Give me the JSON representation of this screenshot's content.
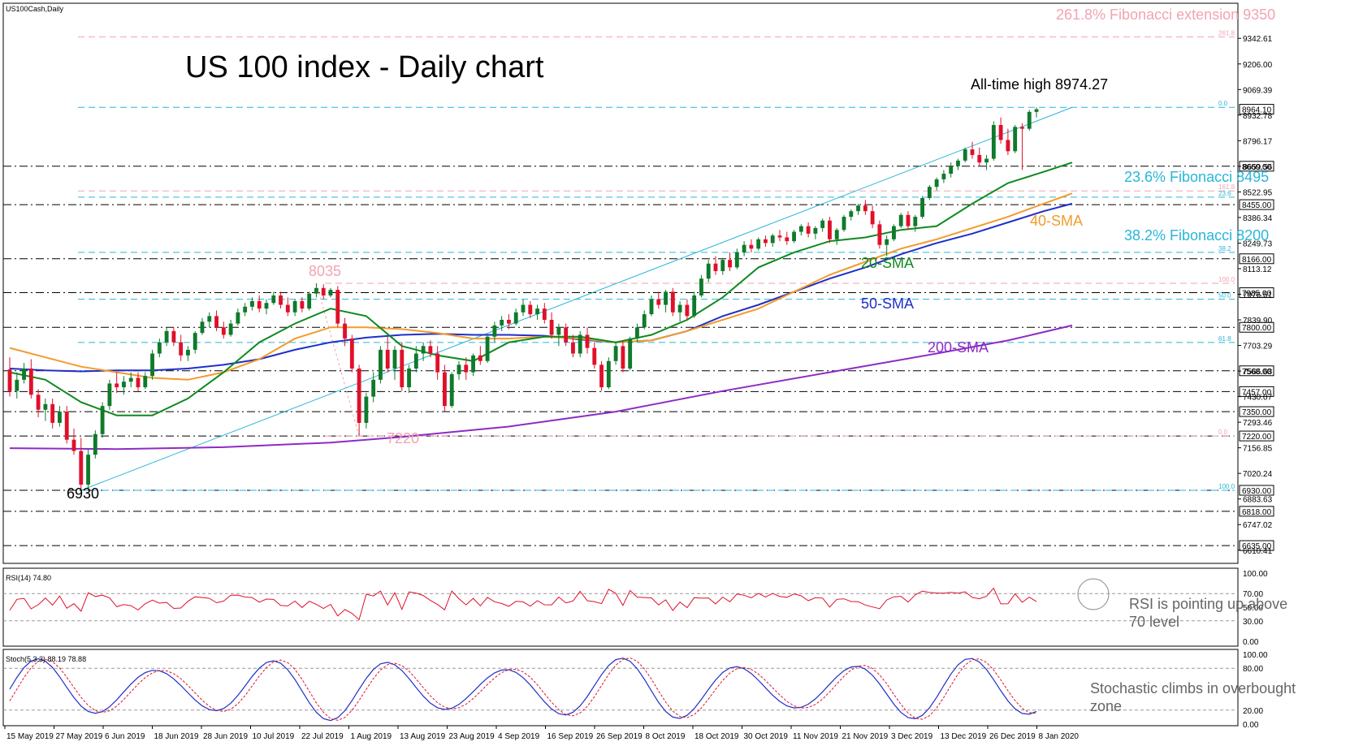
{
  "header": {
    "symbol": "US100Cash,Daily",
    "title": "US 100 index - Daily chart"
  },
  "annotations": {
    "fib_ext": "261.8% Fibonacci extension 9350",
    "ath": "All-time high 8974.27",
    "fib236": "23.6% Fibonacci 8495",
    "fib382": "38.2% Fibonacci 8200",
    "sma20": "20-SMA",
    "sma40": "40-SMA",
    "sma50": "50-SMA",
    "sma200": "200-SMA",
    "low_6930": "6930",
    "low_7220": "7220",
    "high_8035": "8035",
    "rsi_note_1": "RSI is pointing up above",
    "rsi_note_2": "70 level",
    "stoch_note_1": "Stochastic climbs in overbought",
    "stoch_note_2": "zone"
  },
  "colors": {
    "bull": "#0f7a2b",
    "bear": "#e0102a",
    "sma20": "#0f8a1f",
    "sma40": "#f39b2b",
    "sma50": "#1f2fc8",
    "sma200": "#8e2bc4",
    "fib_cyan": "#29b6d9",
    "fib_pink": "#f2a3b3",
    "rsi": "#e0102a",
    "stoch_main": "#1f2fc8",
    "stoch_signal": "#e0102a"
  },
  "indicators": {
    "rsi_label": "RSI(14) 74.80",
    "stoch_label": "Stoch(5,3,3) 88.19 78.88",
    "rsi_ticks": [
      "100.00",
      "70.00",
      "50.00",
      "30.00",
      "0.00"
    ],
    "stoch_ticks": [
      "100.00",
      "80.00",
      "20.00",
      "0.00"
    ]
  },
  "chart_data": {
    "type": "candlestick",
    "title": "US 100 index - Daily chart",
    "symbol": "US100Cash,Daily",
    "ylim": [
      6540,
      9530
    ],
    "x_ticks": [
      "15 May 2019",
      "27 May 2019",
      "6 Jun 2019",
      "18 Jun 2019",
      "28 Jun 2019",
      "10 Jul 2019",
      "22 Jul 2019",
      "1 Aug 2019",
      "13 Aug 2019",
      "23 Aug 2019",
      "4 Sep 2019",
      "16 Sep 2019",
      "26 Sep 2019",
      "8 Oct 2019",
      "18 Oct 2019",
      "30 Oct 2019",
      "11 Nov 2019",
      "21 Nov 2019",
      "3 Dec 2019",
      "13 Dec 2019",
      "26 Dec 2019",
      "8 Jan 2020"
    ],
    "y_ticks": [
      "9342.61",
      "9206.00",
      "9069.39",
      "8932.78",
      "8796.17",
      "8659.56",
      "8522.95",
      "8386.34",
      "8249.73",
      "8113.12",
      "7976.51",
      "7839.90",
      "7703.29",
      "7566.68",
      "7430.07",
      "7293.46",
      "7156.85",
      "7020.24",
      "6883.63",
      "6747.02",
      "6610.41"
    ],
    "price_levels": [
      {
        "value": "8974.27",
        "label": "8964.10",
        "style": "current"
      },
      {
        "value": 8660,
        "label": "8660.00",
        "style": "dashdot"
      },
      {
        "value": 8455,
        "label": "8455.00",
        "style": "dashdot"
      },
      {
        "value": 8166,
        "label": "8166.00",
        "style": "dashdot"
      },
      {
        "value": 7985,
        "label": "7985.00",
        "style": "dashdot"
      },
      {
        "value": 7800,
        "label": "7800.00",
        "style": "dashdot"
      },
      {
        "value": 7568,
        "label": "7568.00",
        "style": "dashdot"
      },
      {
        "value": 7457,
        "label": "7457.00",
        "style": "dashdot"
      },
      {
        "value": 7350,
        "label": "7350.00",
        "style": "dashdot"
      },
      {
        "value": 7220,
        "label": "7220.00",
        "style": "dashdot"
      },
      {
        "value": 6930,
        "label": "6930.00",
        "style": "dashdot"
      },
      {
        "value": 6818,
        "label": "6818.00",
        "style": "dashdot"
      },
      {
        "value": 6635,
        "label": "6635.00",
        "style": "dashdot"
      }
    ],
    "fib_levels": [
      {
        "value": 9350,
        "label": "261.8",
        "color": "pink"
      },
      {
        "value": 8974.27,
        "label": "0.0",
        "color": "cyan"
      },
      {
        "value": 8528,
        "label": "161.8",
        "color": "pink"
      },
      {
        "value": 8495,
        "label": "23.6",
        "color": "cyan"
      },
      {
        "value": 8200,
        "label": "38.2",
        "color": "cyan"
      },
      {
        "value": 8035,
        "label": "100.0",
        "color": "pink"
      },
      {
        "value": 7950,
        "label": "50.0",
        "color": "cyan"
      },
      {
        "value": 7719,
        "label": "61.8",
        "color": "cyan"
      },
      {
        "value": 7220,
        "label": "0.0",
        "color": "pink"
      },
      {
        "value": 6930,
        "label": "100.0",
        "color": "cyan"
      }
    ],
    "ohlc": [
      [
        7575,
        7640,
        7430,
        7460
      ],
      [
        7460,
        7560,
        7420,
        7520
      ],
      [
        7520,
        7610,
        7500,
        7580
      ],
      [
        7580,
        7630,
        7420,
        7440
      ],
      [
        7440,
        7470,
        7320,
        7360
      ],
      [
        7360,
        7420,
        7300,
        7390
      ],
      [
        7390,
        7420,
        7260,
        7290
      ],
      [
        7290,
        7380,
        7270,
        7350
      ],
      [
        7350,
        7380,
        7180,
        7200
      ],
      [
        7200,
        7260,
        7120,
        7140
      ],
      [
        7140,
        7210,
        6930,
        6960
      ],
      [
        6960,
        7150,
        6940,
        7120
      ],
      [
        7120,
        7250,
        7100,
        7230
      ],
      [
        7230,
        7400,
        7210,
        7380
      ],
      [
        7380,
        7520,
        7360,
        7500
      ],
      [
        7500,
        7560,
        7450,
        7480
      ],
      [
        7480,
        7540,
        7440,
        7510
      ],
      [
        7510,
        7560,
        7480,
        7530
      ],
      [
        7530,
        7560,
        7460,
        7480
      ],
      [
        7480,
        7560,
        7470,
        7540
      ],
      [
        7540,
        7680,
        7520,
        7660
      ],
      [
        7660,
        7740,
        7640,
        7720
      ],
      [
        7720,
        7800,
        7700,
        7780
      ],
      [
        7780,
        7800,
        7700,
        7720
      ],
      [
        7720,
        7760,
        7620,
        7650
      ],
      [
        7650,
        7700,
        7620,
        7680
      ],
      [
        7680,
        7780,
        7660,
        7770
      ],
      [
        7770,
        7850,
        7760,
        7830
      ],
      [
        7830,
        7880,
        7800,
        7860
      ],
      [
        7860,
        7890,
        7780,
        7800
      ],
      [
        7800,
        7830,
        7740,
        7760
      ],
      [
        7760,
        7840,
        7750,
        7820
      ],
      [
        7820,
        7900,
        7810,
        7880
      ],
      [
        7880,
        7930,
        7860,
        7910
      ],
      [
        7910,
        7960,
        7890,
        7940
      ],
      [
        7940,
        7970,
        7880,
        7900
      ],
      [
        7900,
        7950,
        7870,
        7930
      ],
      [
        7930,
        7990,
        7920,
        7970
      ],
      [
        7970,
        7990,
        7900,
        7920
      ],
      [
        7920,
        7960,
        7860,
        7880
      ],
      [
        7880,
        7950,
        7860,
        7940
      ],
      [
        7940,
        7960,
        7880,
        7900
      ],
      [
        7900,
        7990,
        7890,
        7980
      ],
      [
        7980,
        8035,
        7960,
        8010
      ],
      [
        8010,
        8030,
        7950,
        7970
      ],
      [
        7970,
        8010,
        7960,
        8000
      ],
      [
        8000,
        8020,
        7800,
        7820
      ],
      [
        7820,
        7850,
        7700,
        7740
      ],
      [
        7740,
        7760,
        7560,
        7580
      ],
      [
        7580,
        7600,
        7220,
        7290
      ],
      [
        7290,
        7450,
        7260,
        7430
      ],
      [
        7430,
        7560,
        7400,
        7520
      ],
      [
        7520,
        7700,
        7500,
        7680
      ],
      [
        7680,
        7750,
        7560,
        7580
      ],
      [
        7580,
        7700,
        7520,
        7680
      ],
      [
        7680,
        7720,
        7460,
        7480
      ],
      [
        7480,
        7600,
        7450,
        7580
      ],
      [
        7580,
        7700,
        7560,
        7660
      ],
      [
        7660,
        7720,
        7620,
        7700
      ],
      [
        7700,
        7730,
        7640,
        7660
      ],
      [
        7660,
        7700,
        7520,
        7560
      ],
      [
        7560,
        7600,
        7350,
        7380
      ],
      [
        7380,
        7560,
        7370,
        7550
      ],
      [
        7550,
        7620,
        7520,
        7600
      ],
      [
        7600,
        7640,
        7520,
        7560
      ],
      [
        7560,
        7660,
        7540,
        7650
      ],
      [
        7650,
        7700,
        7600,
        7620
      ],
      [
        7620,
        7760,
        7610,
        7750
      ],
      [
        7750,
        7830,
        7720,
        7810
      ],
      [
        7810,
        7860,
        7780,
        7840
      ],
      [
        7840,
        7870,
        7790,
        7820
      ],
      [
        7820,
        7900,
        7810,
        7880
      ],
      [
        7880,
        7950,
        7860,
        7920
      ],
      [
        7920,
        7940,
        7850,
        7870
      ],
      [
        7870,
        7920,
        7840,
        7900
      ],
      [
        7900,
        7930,
        7820,
        7840
      ],
      [
        7840,
        7880,
        7740,
        7760
      ],
      [
        7760,
        7820,
        7700,
        7800
      ],
      [
        7800,
        7820,
        7700,
        7720
      ],
      [
        7720,
        7760,
        7640,
        7660
      ],
      [
        7660,
        7780,
        7640,
        7760
      ],
      [
        7760,
        7800,
        7660,
        7690
      ],
      [
        7690,
        7720,
        7580,
        7600
      ],
      [
        7600,
        7620,
        7460,
        7480
      ],
      [
        7480,
        7640,
        7470,
        7620
      ],
      [
        7620,
        7720,
        7600,
        7700
      ],
      [
        7700,
        7730,
        7560,
        7580
      ],
      [
        7580,
        7750,
        7570,
        7740
      ],
      [
        7740,
        7820,
        7720,
        7800
      ],
      [
        7800,
        7890,
        7790,
        7870
      ],
      [
        7870,
        7970,
        7860,
        7950
      ],
      [
        7950,
        7990,
        7900,
        7920
      ],
      [
        7920,
        8000,
        7880,
        7990
      ],
      [
        7990,
        8010,
        7860,
        7880
      ],
      [
        7880,
        7940,
        7830,
        7920
      ],
      [
        7920,
        7950,
        7840,
        7860
      ],
      [
        7860,
        7990,
        7850,
        7970
      ],
      [
        7970,
        8080,
        7960,
        8060
      ],
      [
        8060,
        8160,
        8040,
        8140
      ],
      [
        8140,
        8180,
        8080,
        8100
      ],
      [
        8100,
        8170,
        8080,
        8160
      ],
      [
        8160,
        8200,
        8100,
        8120
      ],
      [
        8120,
        8220,
        8110,
        8200
      ],
      [
        8200,
        8260,
        8180,
        8240
      ],
      [
        8240,
        8270,
        8200,
        8220
      ],
      [
        8220,
        8280,
        8210,
        8270
      ],
      [
        8270,
        8290,
        8230,
        8250
      ],
      [
        8250,
        8300,
        8230,
        8290
      ],
      [
        8290,
        8320,
        8260,
        8280
      ],
      [
        8280,
        8310,
        8240,
        8260
      ],
      [
        8260,
        8320,
        8250,
        8310
      ],
      [
        8310,
        8350,
        8290,
        8340
      ],
      [
        8340,
        8360,
        8280,
        8300
      ],
      [
        8300,
        8340,
        8270,
        8330
      ],
      [
        8330,
        8380,
        8310,
        8370
      ],
      [
        8370,
        8390,
        8250,
        8270
      ],
      [
        8270,
        8330,
        8240,
        8320
      ],
      [
        8320,
        8400,
        8310,
        8390
      ],
      [
        8390,
        8430,
        8370,
        8420
      ],
      [
        8420,
        8460,
        8400,
        8450
      ],
      [
        8450,
        8480,
        8400,
        8420
      ],
      [
        8420,
        8450,
        8330,
        8350
      ],
      [
        8350,
        8370,
        8220,
        8240
      ],
      [
        8240,
        8290,
        8180,
        8270
      ],
      [
        8270,
        8350,
        8260,
        8340
      ],
      [
        8340,
        8410,
        8330,
        8400
      ],
      [
        8400,
        8420,
        8320,
        8340
      ],
      [
        8340,
        8400,
        8310,
        8390
      ],
      [
        8390,
        8500,
        8380,
        8490
      ],
      [
        8490,
        8560,
        8480,
        8550
      ],
      [
        8550,
        8600,
        8530,
        8590
      ],
      [
        8590,
        8640,
        8570,
        8620
      ],
      [
        8620,
        8680,
        8600,
        8660
      ],
      [
        8660,
        8700,
        8640,
        8690
      ],
      [
        8690,
        8760,
        8680,
        8750
      ],
      [
        8750,
        8790,
        8700,
        8720
      ],
      [
        8720,
        8760,
        8660,
        8680
      ],
      [
        8680,
        8720,
        8640,
        8700
      ],
      [
        8700,
        8900,
        8690,
        8880
      ],
      [
        8880,
        8920,
        8780,
        8800
      ],
      [
        8800,
        8860,
        8720,
        8740
      ],
      [
        8740,
        8880,
        8730,
        8870
      ],
      [
        8870,
        8890,
        8640,
        8860
      ],
      [
        8860,
        8960,
        8850,
        8950
      ],
      [
        8950,
        8974.27,
        8920,
        8964.1
      ]
    ],
    "sma20": [
      [
        0,
        7560
      ],
      [
        5,
        7520
      ],
      [
        10,
        7400
      ],
      [
        15,
        7330
      ],
      [
        20,
        7330
      ],
      [
        25,
        7420
      ],
      [
        30,
        7560
      ],
      [
        35,
        7720
      ],
      [
        40,
        7820
      ],
      [
        45,
        7900
      ],
      [
        50,
        7860
      ],
      [
        55,
        7700
      ],
      [
        60,
        7650
      ],
      [
        65,
        7620
      ],
      [
        70,
        7720
      ],
      [
        75,
        7750
      ],
      [
        80,
        7750
      ],
      [
        85,
        7720
      ],
      [
        90,
        7760
      ],
      [
        95,
        7840
      ],
      [
        100,
        7960
      ],
      [
        105,
        8120
      ],
      [
        110,
        8200
      ],
      [
        115,
        8260
      ],
      [
        120,
        8280
      ],
      [
        125,
        8320
      ],
      [
        130,
        8340
      ],
      [
        135,
        8460
      ],
      [
        140,
        8570
      ],
      [
        145,
        8630
      ],
      [
        149,
        8680
      ]
    ],
    "sma40": [
      [
        0,
        7690
      ],
      [
        5,
        7640
      ],
      [
        10,
        7590
      ],
      [
        15,
        7560
      ],
      [
        20,
        7530
      ],
      [
        25,
        7520
      ],
      [
        30,
        7560
      ],
      [
        35,
        7630
      ],
      [
        40,
        7740
      ],
      [
        45,
        7800
      ],
      [
        50,
        7800
      ],
      [
        55,
        7790
      ],
      [
        60,
        7770
      ],
      [
        65,
        7740
      ],
      [
        70,
        7740
      ],
      [
        75,
        7750
      ],
      [
        80,
        7740
      ],
      [
        85,
        7720
      ],
      [
        90,
        7730
      ],
      [
        95,
        7780
      ],
      [
        100,
        7840
      ],
      [
        105,
        7900
      ],
      [
        110,
        7990
      ],
      [
        115,
        8080
      ],
      [
        120,
        8150
      ],
      [
        125,
        8220
      ],
      [
        130,
        8270
      ],
      [
        135,
        8330
      ],
      [
        140,
        8390
      ],
      [
        145,
        8460
      ],
      [
        149,
        8515
      ]
    ],
    "sma50": [
      [
        0,
        7580
      ],
      [
        5,
        7570
      ],
      [
        10,
        7565
      ],
      [
        15,
        7570
      ],
      [
        20,
        7570
      ],
      [
        25,
        7580
      ],
      [
        30,
        7600
      ],
      [
        35,
        7630
      ],
      [
        40,
        7680
      ],
      [
        45,
        7720
      ],
      [
        50,
        7745
      ],
      [
        55,
        7760
      ],
      [
        60,
        7765
      ],
      [
        65,
        7760
      ],
      [
        70,
        7760
      ],
      [
        75,
        7755
      ],
      [
        80,
        7735
      ],
      [
        85,
        7720
      ],
      [
        90,
        7730
      ],
      [
        95,
        7780
      ],
      [
        100,
        7860
      ],
      [
        105,
        7920
      ],
      [
        110,
        7990
      ],
      [
        115,
        8060
      ],
      [
        120,
        8120
      ],
      [
        125,
        8190
      ],
      [
        130,
        8250
      ],
      [
        135,
        8300
      ],
      [
        140,
        8360
      ],
      [
        145,
        8420
      ],
      [
        149,
        8460
      ]
    ],
    "sma200": [
      [
        0,
        7155
      ],
      [
        15,
        7150
      ],
      [
        30,
        7160
      ],
      [
        45,
        7185
      ],
      [
        55,
        7215
      ],
      [
        70,
        7270
      ],
      [
        85,
        7350
      ],
      [
        100,
        7460
      ],
      [
        115,
        7560
      ],
      [
        130,
        7660
      ],
      [
        140,
        7730
      ],
      [
        149,
        7810
      ]
    ]
  }
}
